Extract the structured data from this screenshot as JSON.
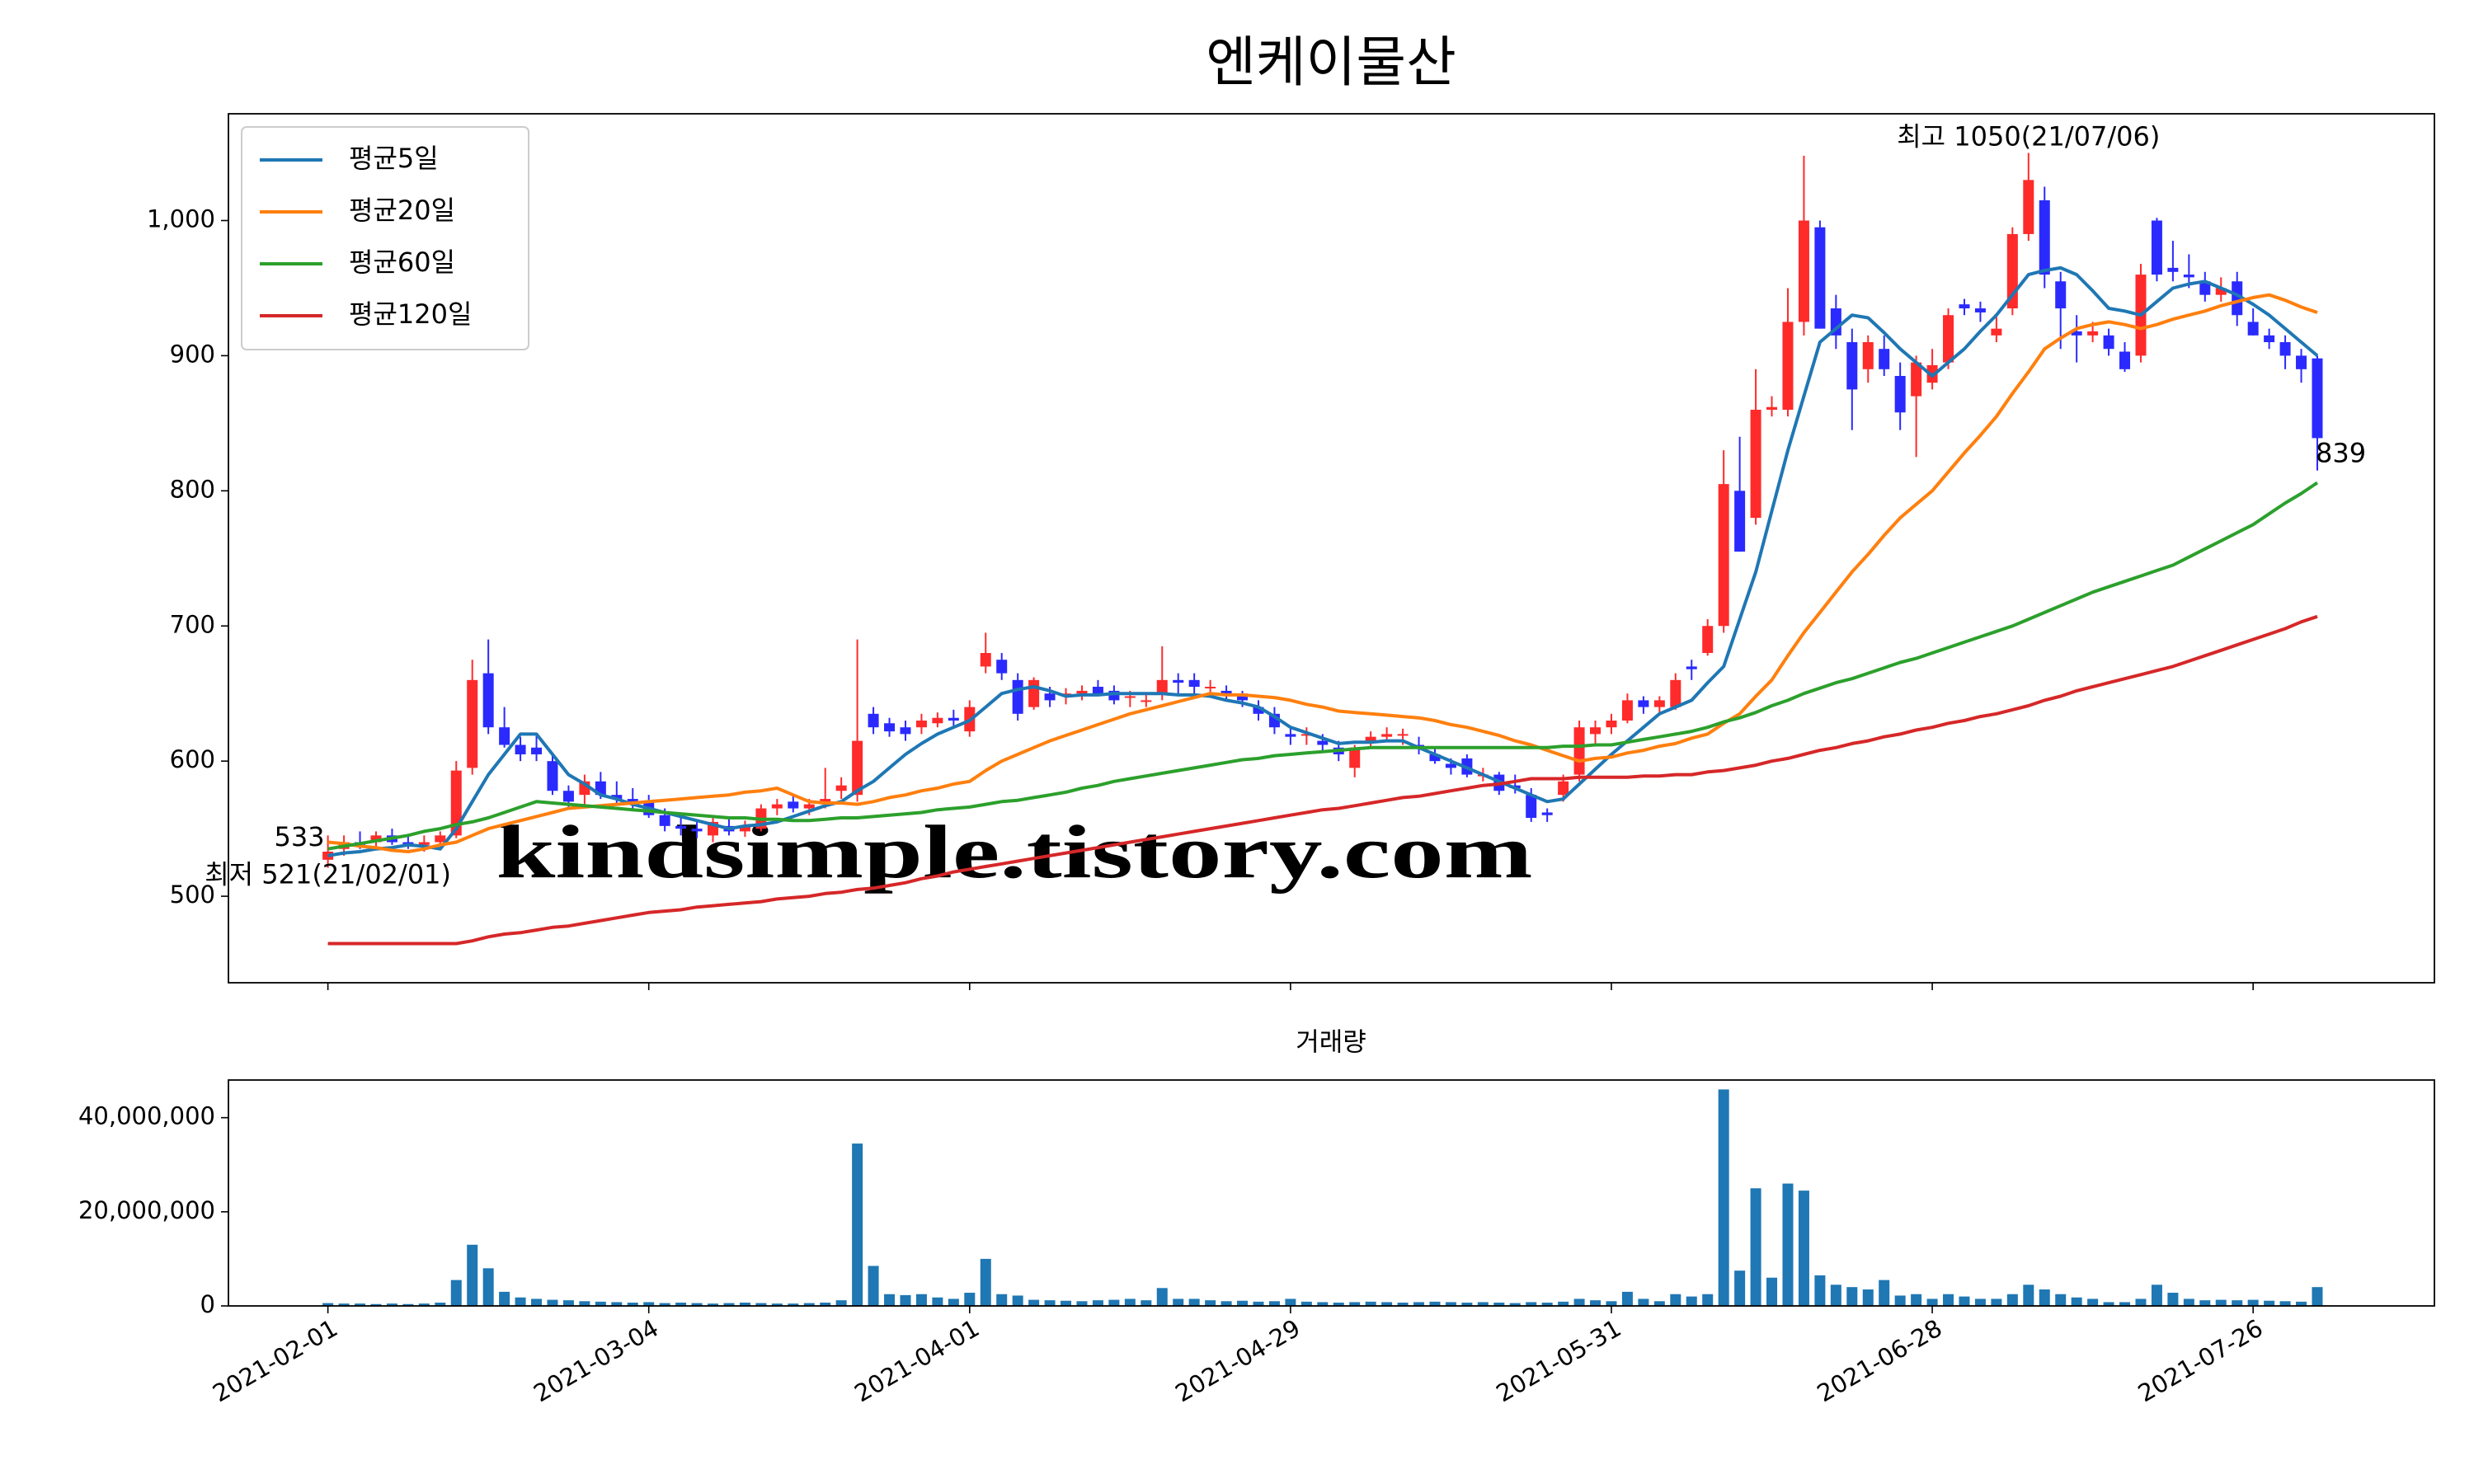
{
  "chart_data": {
    "type": "candlestick",
    "title": "엔케이물산",
    "x": [
      "2021-02-01",
      "2021-02-02",
      "2021-02-03",
      "2021-02-04",
      "2021-02-05",
      "2021-02-08",
      "2021-02-09",
      "2021-02-10",
      "2021-02-15",
      "2021-02-16",
      "2021-02-17",
      "2021-02-18",
      "2021-02-19",
      "2021-02-22",
      "2021-02-23",
      "2021-02-24",
      "2021-02-25",
      "2021-02-26",
      "2021-03-02",
      "2021-03-03",
      "2021-03-04",
      "2021-03-05",
      "2021-03-08",
      "2021-03-09",
      "2021-03-10",
      "2021-03-11",
      "2021-03-12",
      "2021-03-15",
      "2021-03-16",
      "2021-03-17",
      "2021-03-18",
      "2021-03-19",
      "2021-03-22",
      "2021-03-23",
      "2021-03-24",
      "2021-03-25",
      "2021-03-26",
      "2021-03-29",
      "2021-03-30",
      "2021-03-31",
      "2021-04-01",
      "2021-04-02",
      "2021-04-05",
      "2021-04-06",
      "2021-04-07",
      "2021-04-08",
      "2021-04-09",
      "2021-04-12",
      "2021-04-13",
      "2021-04-14",
      "2021-04-15",
      "2021-04-16",
      "2021-04-19",
      "2021-04-20",
      "2021-04-21",
      "2021-04-22",
      "2021-04-23",
      "2021-04-26",
      "2021-04-27",
      "2021-04-28",
      "2021-04-29",
      "2021-04-30",
      "2021-05-03",
      "2021-05-04",
      "2021-05-06",
      "2021-05-07",
      "2021-05-10",
      "2021-05-11",
      "2021-05-12",
      "2021-05-13",
      "2021-05-14",
      "2021-05-17",
      "2021-05-18",
      "2021-05-20",
      "2021-05-21",
      "2021-05-24",
      "2021-05-25",
      "2021-05-26",
      "2021-05-27",
      "2021-05-28",
      "2021-05-31",
      "2021-06-01",
      "2021-06-02",
      "2021-06-03",
      "2021-06-04",
      "2021-06-07",
      "2021-06-08",
      "2021-06-09",
      "2021-06-10",
      "2021-06-11",
      "2021-06-14",
      "2021-06-15",
      "2021-06-16",
      "2021-06-17",
      "2021-06-18",
      "2021-06-21",
      "2021-06-22",
      "2021-06-23",
      "2021-06-24",
      "2021-06-25",
      "2021-06-28",
      "2021-06-29",
      "2021-06-30",
      "2021-07-01",
      "2021-07-02",
      "2021-07-05",
      "2021-07-06",
      "2021-07-07",
      "2021-07-08",
      "2021-07-09",
      "2021-07-12",
      "2021-07-13",
      "2021-07-14",
      "2021-07-15",
      "2021-07-16",
      "2021-07-19",
      "2021-07-20",
      "2021-07-21",
      "2021-07-22",
      "2021-07-23",
      "2021-07-26",
      "2021-07-27",
      "2021-07-28",
      "2021-07-29",
      "2021-07-30"
    ],
    "open": [
      527,
      535,
      540,
      540,
      545,
      540,
      538,
      540,
      545,
      595,
      665,
      625,
      612,
      610,
      600,
      578,
      575,
      585,
      575,
      572,
      570,
      560,
      552,
      550,
      545,
      552,
      548,
      550,
      565,
      570,
      565,
      568,
      578,
      575,
      635,
      628,
      625,
      625,
      628,
      632,
      622,
      670,
      675,
      660,
      640,
      650,
      648,
      650,
      655,
      652,
      648,
      645,
      650,
      660,
      660,
      655,
      652,
      650,
      640,
      635,
      620,
      620,
      615,
      610,
      595,
      615,
      618,
      620,
      612,
      605,
      598,
      602,
      590,
      590,
      582,
      575,
      562,
      575,
      590,
      620,
      625,
      630,
      645,
      640,
      640,
      670,
      680,
      700,
      800,
      780,
      860,
      860,
      925,
      995,
      935,
      910,
      890,
      905,
      885,
      870,
      880,
      895,
      938,
      935,
      915,
      935,
      990,
      1015,
      955,
      918,
      915,
      915,
      903,
      900,
      1000,
      965,
      960,
      955,
      945,
      955,
      925,
      915,
      910,
      900,
      898
    ],
    "high": [
      545,
      545,
      548,
      548,
      550,
      546,
      545,
      548,
      600,
      675,
      690,
      640,
      618,
      620,
      605,
      582,
      590,
      592,
      585,
      580,
      575,
      565,
      558,
      555,
      560,
      558,
      556,
      568,
      572,
      575,
      572,
      595,
      588,
      690,
      640,
      632,
      630,
      635,
      636,
      638,
      645,
      695,
      680,
      665,
      662,
      655,
      654,
      656,
      660,
      656,
      652,
      650,
      685,
      665,
      665,
      660,
      656,
      652,
      645,
      640,
      625,
      625,
      620,
      615,
      612,
      622,
      625,
      624,
      618,
      610,
      602,
      605,
      595,
      592,
      590,
      580,
      565,
      590,
      630,
      630,
      635,
      650,
      648,
      648,
      665,
      675,
      705,
      830,
      840,
      890,
      870,
      950,
      1048,
      1000,
      945,
      920,
      915,
      915,
      895,
      900,
      905,
      935,
      942,
      940,
      930,
      995,
      1050,
      1025,
      962,
      930,
      925,
      920,
      910,
      968,
      1002,
      985,
      975,
      962,
      958,
      962,
      935,
      920,
      915,
      905,
      900
    ],
    "low": [
      521,
      530,
      535,
      534,
      538,
      535,
      533,
      536,
      543,
      590,
      620,
      610,
      600,
      600,
      575,
      565,
      568,
      572,
      568,
      565,
      558,
      548,
      545,
      543,
      540,
      545,
      544,
      548,
      560,
      562,
      560,
      565,
      572,
      570,
      620,
      618,
      615,
      620,
      625,
      625,
      618,
      665,
      660,
      630,
      638,
      640,
      642,
      645,
      648,
      642,
      640,
      640,
      645,
      650,
      650,
      648,
      645,
      640,
      630,
      620,
      612,
      612,
      608,
      600,
      588,
      610,
      615,
      612,
      605,
      598,
      590,
      588,
      585,
      575,
      576,
      555,
      555,
      570,
      585,
      612,
      620,
      628,
      635,
      635,
      638,
      660,
      678,
      695,
      755,
      775,
      855,
      855,
      915,
      920,
      905,
      845,
      880,
      885,
      845,
      825,
      875,
      890,
      930,
      925,
      910,
      930,
      985,
      950,
      905,
      895,
      910,
      900,
      888,
      895,
      955,
      955,
      950,
      940,
      940,
      922,
      915,
      905,
      890,
      880,
      815
    ],
    "close": [
      533,
      540,
      538,
      545,
      540,
      537,
      540,
      545,
      593,
      660,
      625,
      612,
      605,
      605,
      578,
      570,
      585,
      575,
      572,
      568,
      560,
      552,
      550,
      548,
      555,
      548,
      552,
      565,
      568,
      565,
      568,
      572,
      582,
      615,
      625,
      622,
      620,
      630,
      632,
      630,
      640,
      680,
      665,
      635,
      660,
      645,
      650,
      652,
      650,
      645,
      648,
      645,
      660,
      658,
      655,
      655,
      650,
      645,
      635,
      625,
      618,
      620,
      612,
      605,
      610,
      618,
      620,
      620,
      610,
      600,
      595,
      590,
      590,
      578,
      580,
      558,
      560,
      585,
      625,
      625,
      630,
      645,
      640,
      645,
      660,
      668,
      700,
      805,
      755,
      860,
      862,
      925,
      1000,
      920,
      915,
      875,
      910,
      890,
      858,
      895,
      893,
      930,
      935,
      932,
      920,
      990,
      1030,
      960,
      935,
      915,
      918,
      905,
      890,
      960,
      960,
      962,
      958,
      945,
      950,
      930,
      915,
      910,
      900,
      890,
      839
    ],
    "up_color": "#ff2a2a",
    "down_color": "#2a2aff",
    "series": [
      {
        "name": "평균5일",
        "color": "#1f77b4",
        "values": [
          530,
          532,
          533,
          535,
          536,
          538,
          537,
          535,
          550,
          570,
          590,
          605,
          620,
          620,
          605,
          590,
          583,
          575,
          572,
          568,
          565,
          562,
          559,
          556,
          553,
          550,
          552,
          553,
          555,
          559,
          563,
          567,
          570,
          578,
          585,
          595,
          605,
          613,
          620,
          625,
          630,
          640,
          650,
          653,
          655,
          652,
          648,
          649,
          649,
          650,
          650,
          650,
          650,
          649,
          649,
          648,
          645,
          643,
          640,
          633,
          625,
          621,
          617,
          613,
          614,
          614,
          615,
          615,
          610,
          605,
          600,
          595,
          590,
          585,
          580,
          575,
          570,
          572,
          583,
          594,
          605,
          615,
          625,
          635,
          640,
          645,
          658,
          670,
          705,
          740,
          785,
          830,
          870,
          910,
          920,
          930,
          928,
          917,
          905,
          895,
          885,
          895,
          905,
          918,
          930,
          945,
          960,
          963,
          965,
          960,
          948,
          935,
          933,
          930,
          940,
          950,
          953,
          955,
          950,
          945,
          938,
          930,
          920,
          910,
          900
        ]
      },
      {
        "name": "평균20일",
        "color": "#ff7f0e",
        "values": [
          540,
          539,
          537,
          536,
          534,
          533,
          535,
          538,
          540,
          545,
          550,
          553,
          556,
          559,
          562,
          565,
          566,
          567,
          568,
          569,
          570,
          571,
          572,
          573,
          574,
          575,
          577,
          578,
          580,
          575,
          570,
          569,
          569,
          568,
          570,
          573,
          575,
          578,
          580,
          583,
          585,
          593,
          600,
          605,
          610,
          615,
          619,
          623,
          627,
          631,
          635,
          638,
          641,
          644,
          647,
          650,
          649,
          649,
          648,
          647,
          645,
          642,
          640,
          637,
          636,
          635,
          634,
          633,
          632,
          630,
          627,
          625,
          622,
          619,
          615,
          612,
          608,
          604,
          600,
          602,
          603,
          606,
          608,
          611,
          613,
          617,
          620,
          628,
          635,
          648,
          660,
          678,
          695,
          710,
          725,
          740,
          753,
          767,
          780,
          790,
          800,
          814,
          828,
          841,
          855,
          872,
          888,
          905,
          913,
          920,
          923,
          925,
          923,
          920,
          923,
          927,
          930,
          933,
          937,
          940,
          943,
          945,
          941,
          936,
          932
        ]
      },
      {
        "name": "평균60일",
        "color": "#2ca02c",
        "values": [
          535,
          537,
          539,
          541,
          543,
          545,
          548,
          550,
          553,
          555,
          558,
          562,
          566,
          570,
          569,
          568,
          567,
          566,
          565,
          564,
          563,
          562,
          561,
          560,
          559,
          558,
          558,
          557,
          557,
          556,
          556,
          557,
          558,
          558,
          559,
          560,
          561,
          562,
          564,
          565,
          566,
          568,
          570,
          571,
          573,
          575,
          577,
          580,
          582,
          585,
          587,
          589,
          591,
          593,
          595,
          597,
          599,
          601,
          602,
          604,
          605,
          606,
          607,
          608,
          609,
          610,
          610,
          610,
          610,
          610,
          610,
          610,
          610,
          610,
          610,
          610,
          610,
          611,
          611,
          612,
          612,
          614,
          616,
          618,
          620,
          622,
          625,
          629,
          632,
          636,
          641,
          645,
          650,
          654,
          658,
          661,
          665,
          669,
          673,
          676,
          680,
          684,
          688,
          692,
          696,
          700,
          705,
          710,
          715,
          720,
          725,
          729,
          733,
          737,
          741,
          745,
          751,
          757,
          763,
          769,
          775,
          783,
          791,
          798,
          806
        ]
      },
      {
        "name": "평균120일",
        "color": "#d62728",
        "values": [
          465,
          465,
          465,
          465,
          465,
          465,
          465,
          465,
          465,
          467,
          470,
          472,
          473,
          475,
          477,
          478,
          480,
          482,
          484,
          486,
          488,
          489,
          490,
          492,
          493,
          494,
          495,
          496,
          498,
          499,
          500,
          502,
          503,
          505,
          506,
          508,
          510,
          513,
          515,
          518,
          520,
          522,
          524,
          526,
          528,
          530,
          532,
          534,
          536,
          538,
          540,
          542,
          544,
          546,
          548,
          550,
          552,
          554,
          556,
          558,
          560,
          562,
          564,
          565,
          567,
          569,
          571,
          573,
          574,
          576,
          578,
          580,
          582,
          583,
          585,
          587,
          587,
          587,
          588,
          588,
          588,
          588,
          589,
          589,
          590,
          590,
          592,
          593,
          595,
          597,
          600,
          602,
          605,
          608,
          610,
          613,
          615,
          618,
          620,
          623,
          625,
          628,
          630,
          633,
          635,
          638,
          641,
          645,
          648,
          652,
          655,
          658,
          661,
          664,
          667,
          670,
          674,
          678,
          682,
          686,
          690,
          694,
          698,
          703,
          707
        ]
      }
    ],
    "ylim": [
      436,
      1079
    ],
    "yticks": [
      500,
      600,
      700,
      800,
      900,
      {
        "value": 1000,
        "label": "1,000"
      }
    ],
    "xticks": [
      "2021-02-01",
      "2021-03-04",
      "2021-04-01",
      "2021-04-29",
      "2021-05-31",
      "2021-06-28",
      "2021-07-26"
    ],
    "legend": "upper left",
    "annotations": {
      "high": {
        "text": "최고 1050(21/07/06)",
        "color": "#ff0000"
      },
      "low": {
        "text": "최저 521(21/02/01)",
        "color": "#0000ff"
      },
      "first": {
        "text": "533",
        "color": "#000000"
      },
      "last": {
        "text": "839",
        "color": "#000000"
      }
    },
    "watermark": {
      "text": "kindsimple.tistory.com",
      "color": "#e0a0e8"
    },
    "volume": {
      "type": "bar",
      "title": "거래량",
      "color": "#1f77b4",
      "values": [
        600000,
        500000,
        500000,
        400000,
        500000,
        400000,
        500000,
        700000,
        5500000,
        13000000,
        8000000,
        3000000,
        1800000,
        1500000,
        1300000,
        1200000,
        1000000,
        900000,
        800000,
        700000,
        800000,
        600000,
        700000,
        600000,
        500000,
        600000,
        700000,
        600000,
        500000,
        500000,
        600000,
        700000,
        1200000,
        34500000,
        8500000,
        2500000,
        2300000,
        2500000,
        1800000,
        1500000,
        2800000,
        10000000,
        2500000,
        2200000,
        1300000,
        1200000,
        1100000,
        1000000,
        1200000,
        1300000,
        1500000,
        1200000,
        3800000,
        1500000,
        1500000,
        1200000,
        1000000,
        1100000,
        900000,
        1000000,
        1500000,
        900000,
        800000,
        700000,
        800000,
        900000,
        800000,
        700000,
        800000,
        900000,
        800000,
        700000,
        800000,
        700000,
        600000,
        800000,
        700000,
        900000,
        1500000,
        1200000,
        1000000,
        3000000,
        1500000,
        1000000,
        2500000,
        2000000,
        2500000,
        46000000,
        7500000,
        25000000,
        6000000,
        26000000,
        24500000,
        6500000,
        4500000,
        4000000,
        3500000,
        5500000,
        2200000,
        2500000,
        1500000,
        2500000,
        2000000,
        1500000,
        1500000,
        2500000,
        4500000,
        3500000,
        2500000,
        1800000,
        1500000,
        800000,
        800000,
        1500000,
        4500000,
        2800000,
        1500000,
        1200000,
        1300000,
        1200000,
        1300000,
        1100000,
        1000000,
        900000,
        4000000
      ],
      "ylim": [
        0,
        48000000
      ],
      "yticks": [
        0,
        {
          "value": 20000000,
          "label": "20,000,000"
        },
        {
          "value": 40000000,
          "label": "40,000,000"
        }
      ]
    }
  }
}
